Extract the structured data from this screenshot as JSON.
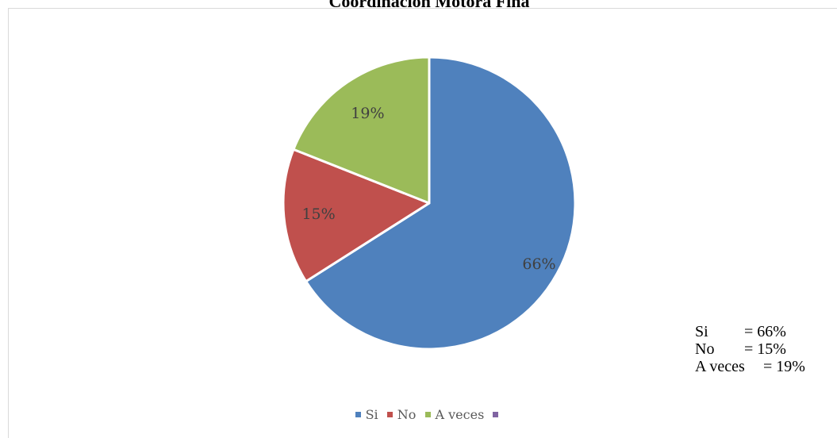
{
  "title": "Coordinación Motora Fina",
  "chart_data": {
    "type": "pie",
    "title": "Coordinación Motora Fina",
    "categories": [
      "Si",
      "No",
      "A veces",
      ""
    ],
    "values": [
      66,
      15,
      19,
      0
    ],
    "labels": [
      "66%",
      "15%",
      "19%"
    ],
    "colors": [
      "#4f81bd",
      "#c0504d",
      "#9bbb59",
      "#8064a2"
    ],
    "legend_position": "bottom",
    "start_angle_deg": 0,
    "direction": "clockwise"
  },
  "legend": {
    "items": [
      {
        "label": "Si",
        "color": "#4f81bd"
      },
      {
        "label": "No",
        "color": "#c0504d"
      },
      {
        "label": "A veces",
        "color": "#9bbb59"
      },
      {
        "label": "",
        "color": "#8064a2"
      }
    ]
  },
  "side_note": {
    "rows": [
      {
        "label": "Si",
        "value": "= 66%"
      },
      {
        "label": "No",
        "value": "= 15%"
      },
      {
        "label": "A veces",
        "value": "= 19%"
      }
    ]
  }
}
